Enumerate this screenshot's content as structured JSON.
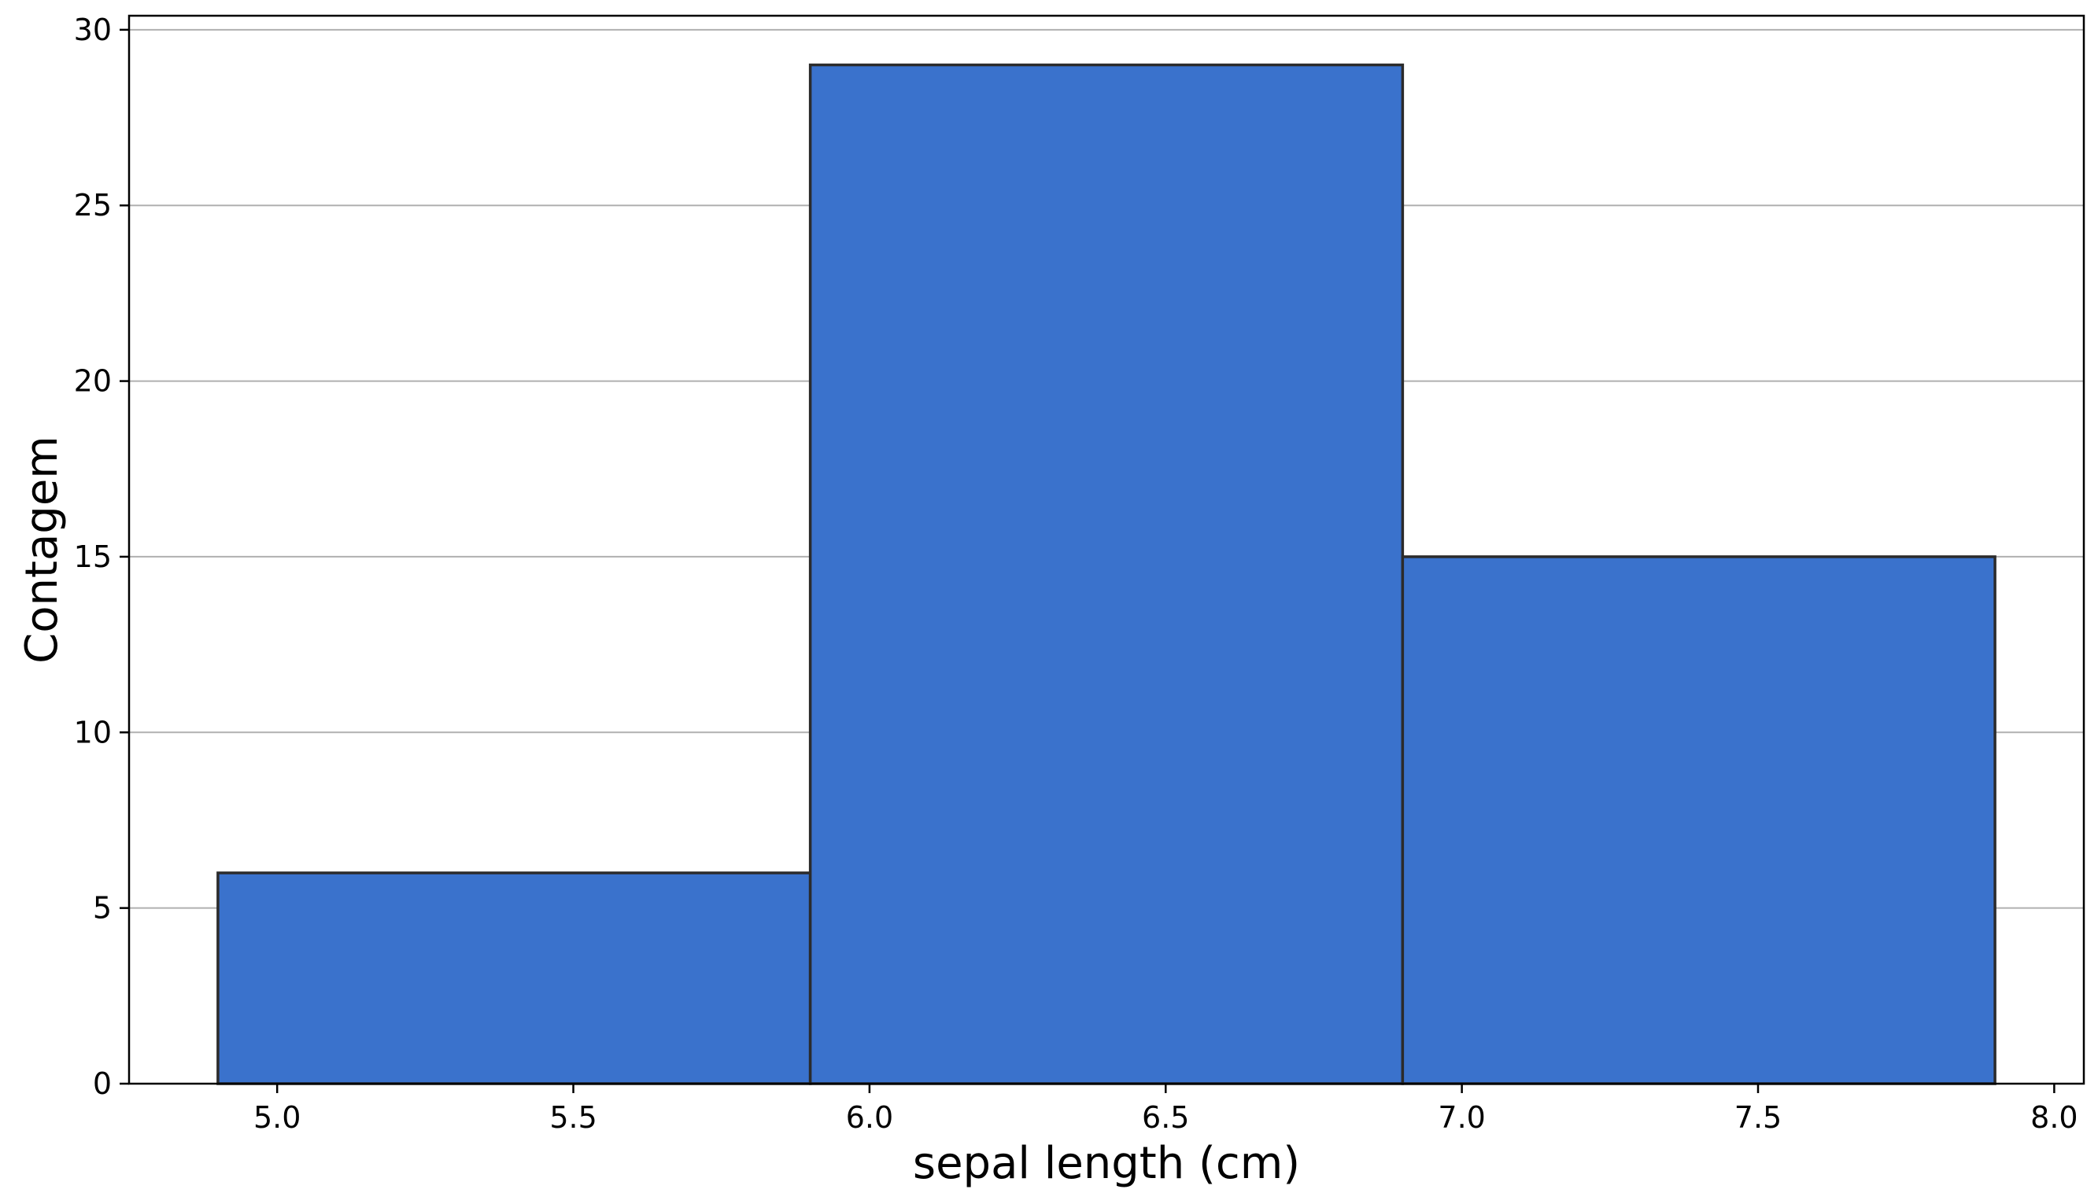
{
  "chart_data": {
    "type": "bar",
    "bins": [
      {
        "x0": 4.9,
        "x1": 5.9,
        "count": 6
      },
      {
        "x0": 5.9,
        "x1": 6.9,
        "count": 29
      },
      {
        "x0": 6.9,
        "x1": 7.9,
        "count": 15
      }
    ],
    "xlabel": "sepal length (cm)",
    "ylabel": "Contagem",
    "xlim": [
      4.75,
      8.05
    ],
    "ylim": [
      0,
      30.4
    ],
    "xticks": [
      5.0,
      5.5,
      6.0,
      6.5,
      7.0,
      7.5,
      8.0
    ],
    "xtick_labels": [
      "5.0",
      "5.5",
      "6.0",
      "6.5",
      "7.0",
      "7.5",
      "8.0"
    ],
    "yticks": [
      0,
      5,
      10,
      15,
      20,
      25,
      30
    ],
    "ytick_labels": [
      "0",
      "5",
      "10",
      "15",
      "20",
      "25",
      "30"
    ],
    "grid": "horizontal",
    "bar_color": "#3a72cc",
    "edge_color": "#2b2b2b"
  }
}
